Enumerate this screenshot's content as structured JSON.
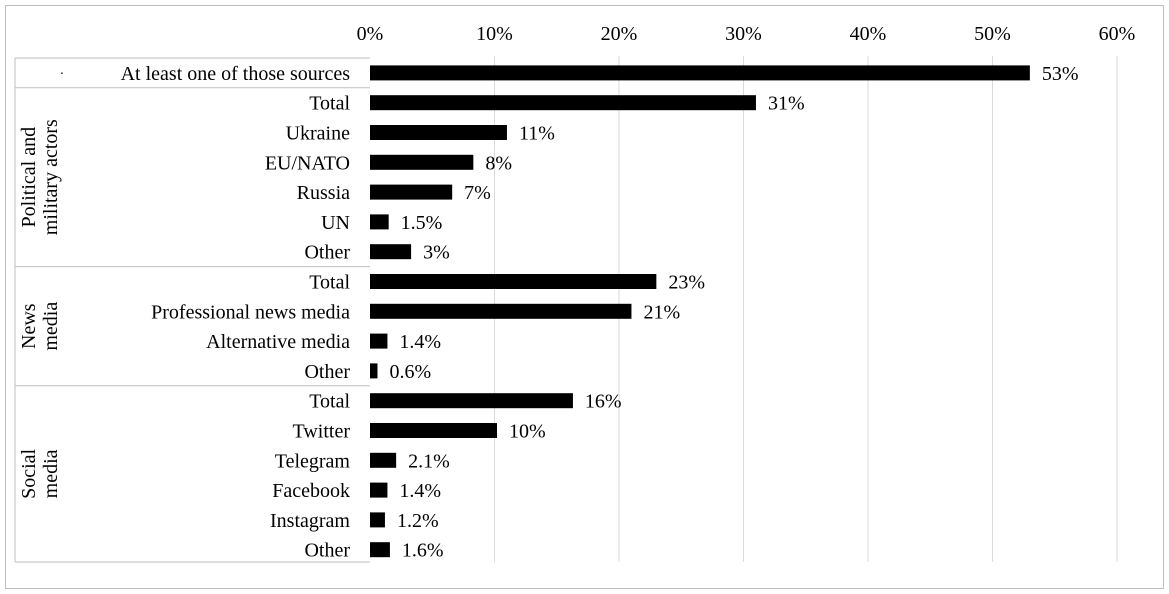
{
  "chart_data": {
    "type": "bar",
    "orientation": "horizontal",
    "xlim": [
      0,
      60
    ],
    "x_ticks": [
      0,
      10,
      20,
      30,
      40,
      50,
      60
    ],
    "x_tick_labels": [
      "0%",
      "10%",
      "20%",
      "30%",
      "40%",
      "50%",
      "60%"
    ],
    "grid": "vertical",
    "legend": "none",
    "bar_color": "#000000",
    "groups": [
      {
        "label": "",
        "label_lines": [],
        "bullet": "·",
        "items": [
          {
            "label": "At least one of those sources",
            "value": 53,
            "value_label": "53%"
          }
        ]
      },
      {
        "label": "Political and military actors",
        "label_lines": [
          "Political and",
          "military actors"
        ],
        "items": [
          {
            "label": "Total",
            "value": 31,
            "value_label": "31%"
          },
          {
            "label": "Ukraine",
            "value": 11,
            "value_label": "11%"
          },
          {
            "label": "EU/NATO",
            "value": 8.3,
            "value_label": "8%"
          },
          {
            "label": "Russia",
            "value": 6.6,
            "value_label": "7%"
          },
          {
            "label": "UN",
            "value": 1.5,
            "value_label": "1.5%"
          },
          {
            "label": "Other",
            "value": 3.3,
            "value_label": "3%"
          }
        ]
      },
      {
        "label": "News media",
        "label_lines": [
          "News",
          "media"
        ],
        "items": [
          {
            "label": "Total",
            "value": 23,
            "value_label": "23%"
          },
          {
            "label": "Professional news media",
            "value": 21,
            "value_label": "21%"
          },
          {
            "label": "Alternative media",
            "value": 1.4,
            "value_label": "1.4%"
          },
          {
            "label": "Other",
            "value": 0.6,
            "value_label": "0.6%"
          }
        ]
      },
      {
        "label": "Social media",
        "label_lines": [
          "Social",
          "media"
        ],
        "items": [
          {
            "label": "Total",
            "value": 16.3,
            "value_label": "16%"
          },
          {
            "label": "Twitter",
            "value": 10.2,
            "value_label": "10%"
          },
          {
            "label": "Telegram",
            "value": 2.1,
            "value_label": "2.1%"
          },
          {
            "label": "Facebook",
            "value": 1.4,
            "value_label": "1.4%"
          },
          {
            "label": "Instagram",
            "value": 1.2,
            "value_label": "1.2%"
          },
          {
            "label": "Other",
            "value": 1.6,
            "value_label": "1.6%"
          }
        ]
      }
    ]
  }
}
